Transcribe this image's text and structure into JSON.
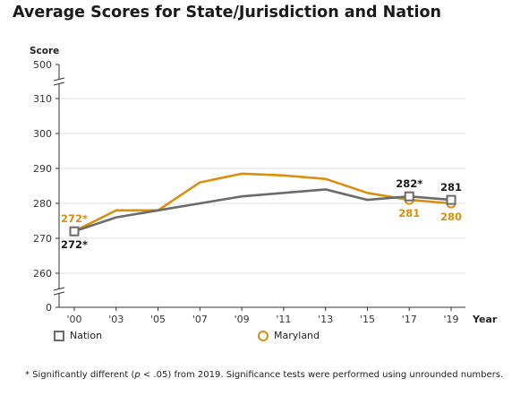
{
  "title": "Average Scores for State/Jurisdiction and Nation",
  "footnote": {
    "prefix": "* Significantly different (",
    "p_symbol": "p",
    "suffix": " < .05) from 2019. Significance tests were performed using unrounded numbers."
  },
  "colors": {
    "nation": "#6b6b6b",
    "maryland": "#d8900e",
    "grid": "#e2e2e2",
    "axis": "#333333"
  },
  "chart_data": {
    "type": "line",
    "title": "Average Scores for State/Jurisdiction and Nation",
    "xlabel": "Year",
    "ylabel": "Score",
    "categories": [
      "'00",
      "'03",
      "'05",
      "'07",
      "'09",
      "'11",
      "'13",
      "'15",
      "'17",
      "'19"
    ],
    "y_ticks": [
      "500",
      "310",
      "300",
      "290",
      "280",
      "270",
      "260",
      "0"
    ],
    "ylim": [
      260,
      310
    ],
    "axis_breaks": [
      "between 310 and 500",
      "between 0 and 260"
    ],
    "grid": true,
    "legend_position": "bottom-left",
    "series": [
      {
        "name": "Nation",
        "marker": "square",
        "values": [
          272,
          276,
          278,
          280,
          282,
          283,
          284,
          281,
          282,
          281
        ]
      },
      {
        "name": "Maryland",
        "marker": "circle",
        "values": [
          272,
          278,
          278,
          286,
          288.5,
          288,
          287,
          283,
          281,
          280
        ]
      }
    ],
    "data_labels": [
      {
        "series": "Maryland",
        "category": "'00",
        "text": "272*",
        "placement": "above"
      },
      {
        "series": "Nation",
        "category": "'00",
        "text": "272*",
        "placement": "below"
      },
      {
        "series": "Nation",
        "category": "'17",
        "text": "282*",
        "placement": "above"
      },
      {
        "series": "Maryland",
        "category": "'17",
        "text": "281",
        "placement": "below"
      },
      {
        "series": "Nation",
        "category": "'19",
        "text": "281",
        "placement": "above"
      },
      {
        "series": "Maryland",
        "category": "'19",
        "text": "280",
        "placement": "below"
      }
    ]
  }
}
